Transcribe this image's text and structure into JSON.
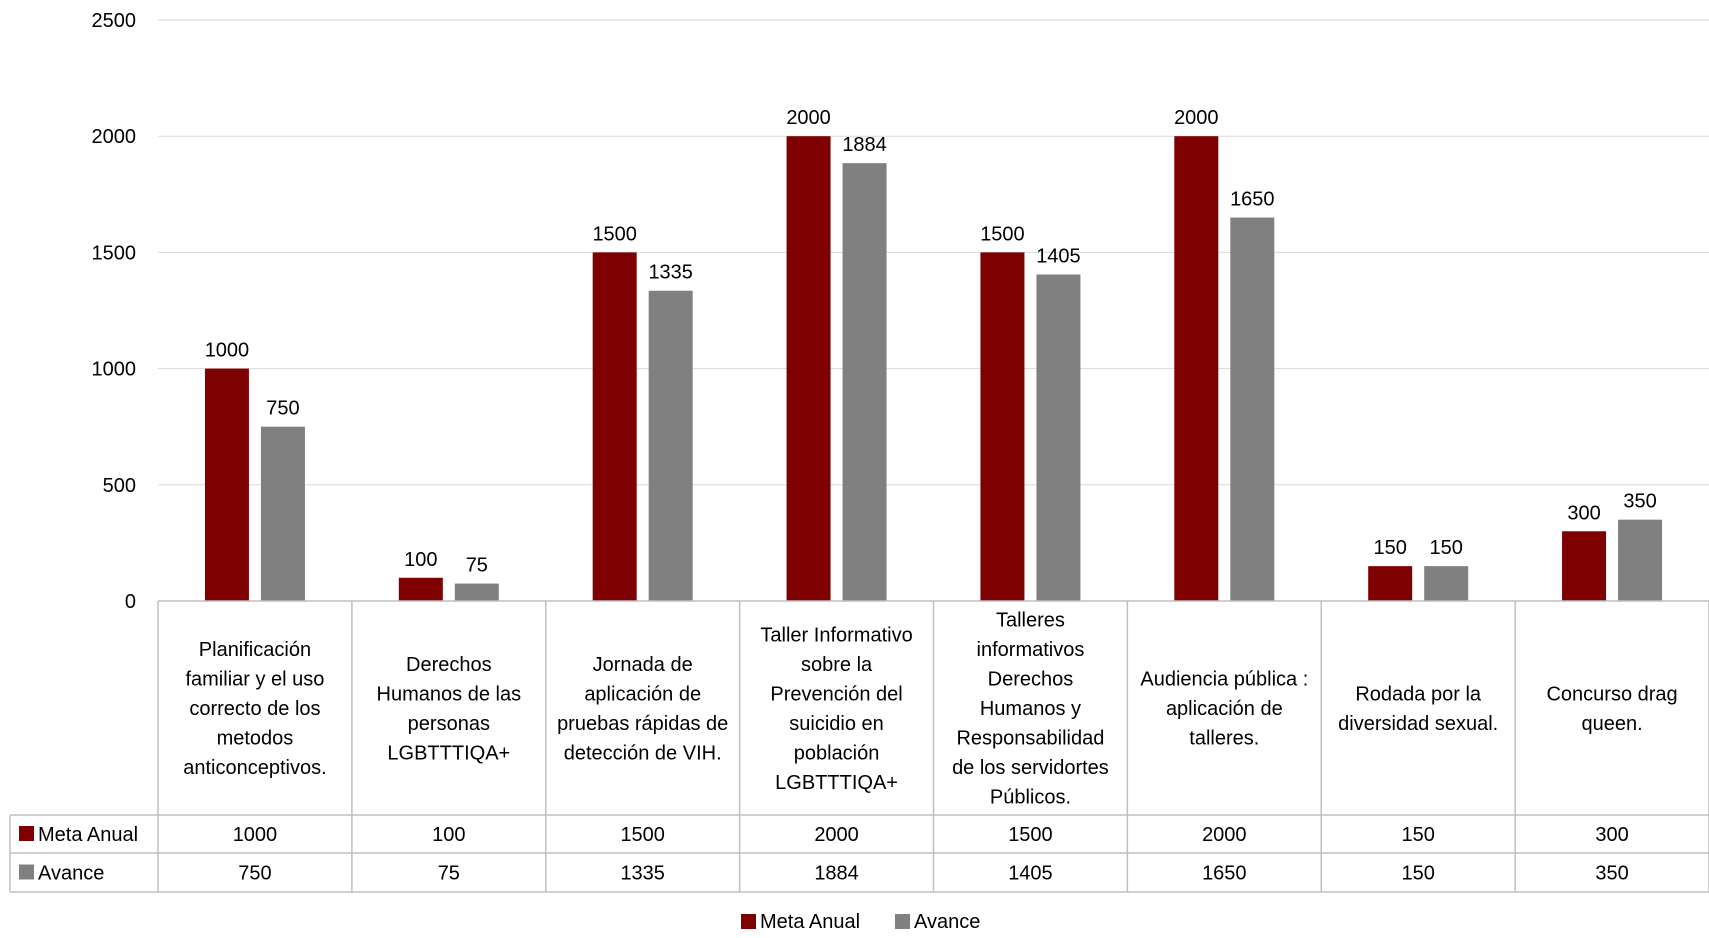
{
  "chart_data": {
    "type": "bar",
    "categories": [
      "Planificación familiar y el uso correcto de los metodos anticonceptivos.",
      "Derechos Humanos  de las personas LGBTTTIQA+",
      "Jornada  de aplicación de pruebas rápidas de detección de VIH.",
      "Taller Informativo sobre la Prevención del suicidio en población LGBTTTIQA+",
      "Talleres informativos Derechos Humanos y Responsabilidad de los servidortes Públicos.",
      "Audiencia pública : aplicación de talleres.",
      "Rodada por la diversidad sexual.",
      "Concurso drag queen."
    ],
    "category_lines": [
      [
        "Planificación",
        "familiar y el uso",
        "correcto de los",
        "metodos",
        "anticonceptivos."
      ],
      [
        "Derechos",
        "Humanos  de las",
        "personas",
        "LGBTTTIQA+"
      ],
      [
        "Jornada  de",
        "aplicación de",
        "pruebas rápidas de",
        "detección de VIH."
      ],
      [
        "Taller Informativo",
        "sobre la",
        "Prevención del",
        "suicidio en",
        "población",
        "LGBTTTIQA+"
      ],
      [
        "Talleres",
        "informativos",
        "Derechos",
        "Humanos y",
        "Responsabilidad",
        "de los servidortes",
        "Públicos."
      ],
      [
        "Audiencia pública :",
        "aplicación de",
        "talleres."
      ],
      [
        "Rodada por la",
        "diversidad sexual."
      ],
      [
        "Concurso drag",
        "queen."
      ]
    ],
    "series": [
      {
        "name": "Meta Anual",
        "color": "#7f0000",
        "values": [
          1000,
          100,
          1500,
          2000,
          1500,
          2000,
          150,
          300
        ]
      },
      {
        "name": "Avance",
        "color": "#808080",
        "values": [
          750,
          75,
          1335,
          1884,
          1405,
          1650,
          150,
          350
        ]
      }
    ],
    "ylim": [
      0,
      2500
    ],
    "yticks": [
      0,
      500,
      1000,
      1500,
      2000,
      2500
    ],
    "grid": true,
    "data_labels": true,
    "data_table": true,
    "legend_position": "bottom",
    "title": "",
    "xlabel": "",
    "ylabel": ""
  }
}
